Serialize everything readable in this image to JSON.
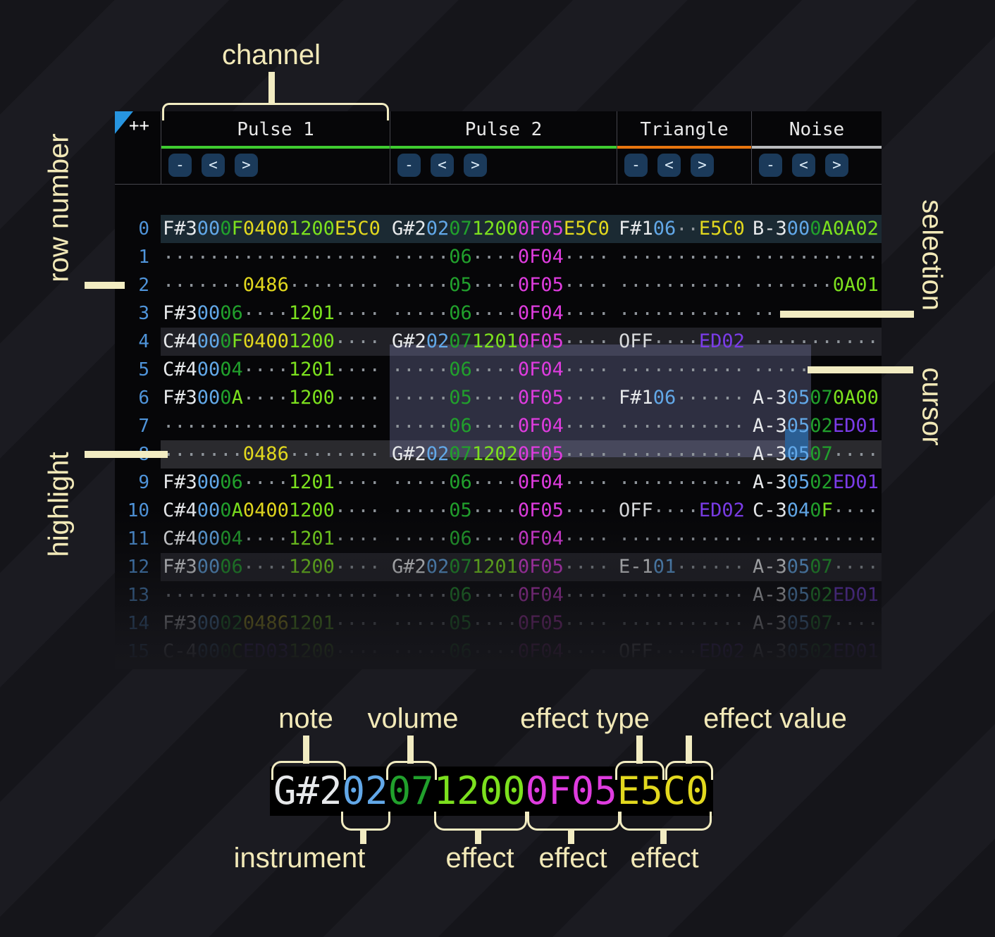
{
  "colors": {
    "note": "#e7e9eb",
    "inst": "#62a8e8",
    "vol": "#21a02c",
    "volh": "#7ce01e",
    "effG": "#7ce01e",
    "effY": "#e2d81e",
    "effM": "#df3cdf",
    "effP": "#7b3ce8",
    "off": "#d8dadc",
    "dot": "#8f959b",
    "rownum": "#4f94da",
    "annot": "#f2e9b8",
    "bracket": "#f2ecc2",
    "cursor": "#2b5f94",
    "selection": "rgba(138,144,200,0.30)",
    "btnbg": "#1b3a5a",
    "btnfg": "#dcecf8",
    "divider": "#45454c",
    "tablebg": "#060608",
    "hl0": "#1b2a33",
    "hl4": "#212127",
    "hl8": "#2a2a2e",
    "headtext": "#e8e8e8"
  },
  "corner": {
    "label": "++"
  },
  "header": {
    "channels": [
      {
        "key": "p1",
        "label": "Pulse 1",
        "underline": "#3fcb30",
        "buttons": [
          "-",
          "<",
          ">"
        ]
      },
      {
        "key": "p2",
        "label": "Pulse 2",
        "underline": "#3fcb30",
        "buttons": [
          "-",
          "<",
          ">"
        ]
      },
      {
        "key": "tri",
        "label": "Triangle",
        "underline": "#e8750f",
        "buttons": [
          "-",
          "<",
          ">"
        ]
      },
      {
        "key": "noi",
        "label": "Noise",
        "underline": "#b8babc",
        "buttons": [
          "-",
          "<",
          ">"
        ]
      }
    ]
  },
  "annotations": {
    "channel": "channel",
    "row_number": "row number",
    "selection": "selection",
    "cursor": "cursor",
    "highlight": "highlight"
  },
  "example": {
    "segments": [
      [
        "note",
        "G#2"
      ],
      [
        "inst",
        "02"
      ],
      [
        "vol",
        "07"
      ],
      [
        "effG",
        "1200"
      ],
      [
        "effM",
        "0F05"
      ],
      [
        "effY",
        "E5C0"
      ]
    ],
    "top_labels": [
      "note",
      "volume",
      "effect type",
      "effect value"
    ],
    "bottom_labels": [
      "instrument",
      "effect",
      "effect",
      "effect"
    ]
  },
  "pattern": {
    "rows": [
      {
        "n": "0",
        "hl": "first",
        "p1": [
          [
            "note",
            "F#3"
          ],
          [
            "inst",
            "00"
          ],
          [
            "vol",
            "0"
          ],
          [
            "volh",
            "F"
          ],
          [
            "effY",
            "0400"
          ],
          [
            "effG",
            "1200"
          ],
          [
            "effY",
            "E5C0"
          ]
        ],
        "p2": [
          [
            "note",
            "G#2"
          ],
          [
            "inst",
            "02"
          ],
          [
            "vol",
            "07"
          ],
          [
            "effG",
            "1200"
          ],
          [
            "effM",
            "0F05"
          ],
          [
            "effY",
            "E5C0"
          ]
        ],
        "tri": [
          [
            "note",
            "F#1"
          ],
          [
            "inst",
            "06"
          ],
          [
            "dot",
            ".."
          ],
          [
            "effY",
            "E5C0"
          ]
        ],
        "noi": [
          [
            "note",
            "B-3"
          ],
          [
            "inst",
            "00"
          ],
          [
            "vol",
            "0"
          ],
          [
            "volh",
            "A"
          ],
          [
            "effG",
            "0A02"
          ]
        ]
      },
      {
        "n": "1",
        "p1": [
          [
            "dot",
            "..................."
          ]
        ],
        "p2": [
          [
            "dot",
            "....."
          ],
          [
            "vol",
            "06"
          ],
          [
            "dot",
            "...."
          ],
          [
            "effM",
            "0F04"
          ],
          [
            "dot",
            "...."
          ]
        ],
        "tri": [
          [
            "dot",
            "..........."
          ]
        ],
        "noi": [
          [
            "dot",
            "..........."
          ]
        ]
      },
      {
        "n": "2",
        "p1": [
          [
            "dot",
            "......."
          ],
          [
            "effY",
            "0486"
          ],
          [
            "dot",
            "........"
          ]
        ],
        "p2": [
          [
            "dot",
            "....."
          ],
          [
            "vol",
            "05"
          ],
          [
            "dot",
            "...."
          ],
          [
            "effM",
            "0F05"
          ],
          [
            "dot",
            "...."
          ]
        ],
        "tri": [
          [
            "dot",
            "..........."
          ]
        ],
        "noi": [
          [
            "dot",
            "......."
          ],
          [
            "effG",
            "0A01"
          ]
        ]
      },
      {
        "n": "3",
        "p1": [
          [
            "note",
            "F#3"
          ],
          [
            "inst",
            "00"
          ],
          [
            "vol",
            "06"
          ],
          [
            "dot",
            "...."
          ],
          [
            "effG",
            "1201"
          ],
          [
            "dot",
            "...."
          ]
        ],
        "p2": [
          [
            "dot",
            "....."
          ],
          [
            "vol",
            "06"
          ],
          [
            "dot",
            "...."
          ],
          [
            "effM",
            "0F04"
          ],
          [
            "dot",
            "...."
          ]
        ],
        "tri": [
          [
            "dot",
            "..........."
          ]
        ],
        "noi": [
          [
            "dot",
            "..........."
          ]
        ]
      },
      {
        "n": "4",
        "hl": "beat",
        "p1": [
          [
            "note",
            "C#4"
          ],
          [
            "inst",
            "00"
          ],
          [
            "vol",
            "0"
          ],
          [
            "volh",
            "F"
          ],
          [
            "effY",
            "0400"
          ],
          [
            "effG",
            "1200"
          ],
          [
            "dot",
            "...."
          ]
        ],
        "p2": [
          [
            "note",
            "G#2"
          ],
          [
            "inst",
            "02"
          ],
          [
            "vol",
            "07"
          ],
          [
            "effG",
            "1201"
          ],
          [
            "effM",
            "0F05"
          ],
          [
            "dot",
            "...."
          ]
        ],
        "tri": [
          [
            "off",
            "OFF"
          ],
          [
            "dot",
            "...."
          ],
          [
            "effP",
            "ED02"
          ]
        ],
        "noi": [
          [
            "dot",
            "..........."
          ]
        ]
      },
      {
        "n": "5",
        "p1": [
          [
            "note",
            "C#4"
          ],
          [
            "inst",
            "00"
          ],
          [
            "vol",
            "04"
          ],
          [
            "dot",
            "...."
          ],
          [
            "effG",
            "1201"
          ],
          [
            "dot",
            "...."
          ]
        ],
        "p2": [
          [
            "dot",
            "....."
          ],
          [
            "vol",
            "06"
          ],
          [
            "dot",
            "...."
          ],
          [
            "effM",
            "0F04"
          ],
          [
            "dot",
            "...."
          ]
        ],
        "tri": [
          [
            "dot",
            "..........."
          ]
        ],
        "noi": [
          [
            "dot",
            "..........."
          ]
        ]
      },
      {
        "n": "6",
        "p1": [
          [
            "note",
            "F#3"
          ],
          [
            "inst",
            "00"
          ],
          [
            "vol",
            "0"
          ],
          [
            "volh",
            "A"
          ],
          [
            "dot",
            "...."
          ],
          [
            "effG",
            "1200"
          ],
          [
            "dot",
            "...."
          ]
        ],
        "p2": [
          [
            "dot",
            "....."
          ],
          [
            "vol",
            "05"
          ],
          [
            "dot",
            "...."
          ],
          [
            "effM",
            "0F05"
          ],
          [
            "dot",
            "...."
          ]
        ],
        "tri": [
          [
            "note",
            "F#1"
          ],
          [
            "inst",
            "06"
          ],
          [
            "dot",
            "......"
          ]
        ],
        "noi": [
          [
            "note",
            "A-3"
          ],
          [
            "inst",
            "05"
          ],
          [
            "vol",
            "07"
          ],
          [
            "effG",
            "0A00"
          ]
        ]
      },
      {
        "n": "7",
        "p1": [
          [
            "dot",
            "..................."
          ]
        ],
        "p2": [
          [
            "dot",
            "....."
          ],
          [
            "vol",
            "06"
          ],
          [
            "dot",
            "...."
          ],
          [
            "effM",
            "0F04"
          ],
          [
            "dot",
            "...."
          ]
        ],
        "tri": [
          [
            "dot",
            "..........."
          ]
        ],
        "noi": [
          [
            "note",
            "A-3"
          ],
          [
            "inst",
            "05"
          ],
          [
            "vol",
            "02"
          ],
          [
            "effP",
            "ED01"
          ]
        ]
      },
      {
        "n": "8",
        "hl": "bar",
        "p1": [
          [
            "dot",
            "......."
          ],
          [
            "effY",
            "0486"
          ],
          [
            "dot",
            "........"
          ]
        ],
        "p2": [
          [
            "note",
            "G#2"
          ],
          [
            "inst",
            "02"
          ],
          [
            "vol",
            "07"
          ],
          [
            "effG",
            "1202"
          ],
          [
            "effM",
            "0F05"
          ],
          [
            "dot",
            "...."
          ]
        ],
        "tri": [
          [
            "dot",
            "..........."
          ]
        ],
        "noi": [
          [
            "note",
            "A-3"
          ],
          [
            "inst",
            "05"
          ],
          [
            "vol",
            "07"
          ],
          [
            "dot",
            "...."
          ]
        ]
      },
      {
        "n": "9",
        "p1": [
          [
            "note",
            "F#3"
          ],
          [
            "inst",
            "00"
          ],
          [
            "vol",
            "06"
          ],
          [
            "dot",
            "...."
          ],
          [
            "effG",
            "1201"
          ],
          [
            "dot",
            "...."
          ]
        ],
        "p2": [
          [
            "dot",
            "....."
          ],
          [
            "vol",
            "06"
          ],
          [
            "dot",
            "...."
          ],
          [
            "effM",
            "0F04"
          ],
          [
            "dot",
            "...."
          ]
        ],
        "tri": [
          [
            "dot",
            "..........."
          ]
        ],
        "noi": [
          [
            "note",
            "A-3"
          ],
          [
            "inst",
            "05"
          ],
          [
            "vol",
            "02"
          ],
          [
            "effP",
            "ED01"
          ]
        ]
      },
      {
        "n": "10",
        "p1": [
          [
            "note",
            "C#4"
          ],
          [
            "inst",
            "00"
          ],
          [
            "vol",
            "0"
          ],
          [
            "volh",
            "A"
          ],
          [
            "effY",
            "0400"
          ],
          [
            "effG",
            "1200"
          ],
          [
            "dot",
            "...."
          ]
        ],
        "p2": [
          [
            "dot",
            "....."
          ],
          [
            "vol",
            "05"
          ],
          [
            "dot",
            "...."
          ],
          [
            "effM",
            "0F05"
          ],
          [
            "dot",
            "...."
          ]
        ],
        "tri": [
          [
            "off",
            "OFF"
          ],
          [
            "dot",
            "...."
          ],
          [
            "effP",
            "ED02"
          ]
        ],
        "noi": [
          [
            "note",
            "C-3"
          ],
          [
            "inst",
            "04"
          ],
          [
            "vol",
            "0"
          ],
          [
            "volh",
            "F"
          ],
          [
            "dot",
            "...."
          ]
        ]
      },
      {
        "n": "11",
        "p1": [
          [
            "note",
            "C#4"
          ],
          [
            "inst",
            "00"
          ],
          [
            "vol",
            "04"
          ],
          [
            "dot",
            "...."
          ],
          [
            "effG",
            "1201"
          ],
          [
            "dot",
            "...."
          ]
        ],
        "p2": [
          [
            "dot",
            "....."
          ],
          [
            "vol",
            "06"
          ],
          [
            "dot",
            "...."
          ],
          [
            "effM",
            "0F04"
          ],
          [
            "dot",
            "...."
          ]
        ],
        "tri": [
          [
            "dot",
            "..........."
          ]
        ],
        "noi": [
          [
            "dot",
            "..........."
          ]
        ]
      },
      {
        "n": "12",
        "hl": "beat",
        "p1": [
          [
            "note",
            "F#3"
          ],
          [
            "inst",
            "00"
          ],
          [
            "vol",
            "06"
          ],
          [
            "dot",
            "...."
          ],
          [
            "effG",
            "1200"
          ],
          [
            "dot",
            "...."
          ]
        ],
        "p2": [
          [
            "note",
            "G#2"
          ],
          [
            "inst",
            "02"
          ],
          [
            "vol",
            "07"
          ],
          [
            "effG",
            "1201"
          ],
          [
            "effM",
            "0F05"
          ],
          [
            "dot",
            "...."
          ]
        ],
        "tri": [
          [
            "note",
            "E-1"
          ],
          [
            "inst",
            "01"
          ],
          [
            "dot",
            "......"
          ]
        ],
        "noi": [
          [
            "note",
            "A-3"
          ],
          [
            "inst",
            "05"
          ],
          [
            "vol",
            "07"
          ],
          [
            "dot",
            "...."
          ]
        ]
      },
      {
        "n": "13",
        "p1": [
          [
            "dot",
            "..................."
          ]
        ],
        "p2": [
          [
            "dot",
            "....."
          ],
          [
            "vol",
            "06"
          ],
          [
            "dot",
            "...."
          ],
          [
            "effM",
            "0F04"
          ],
          [
            "dot",
            "...."
          ]
        ],
        "tri": [
          [
            "dot",
            "..........."
          ]
        ],
        "noi": [
          [
            "note",
            "A-3"
          ],
          [
            "inst",
            "05"
          ],
          [
            "vol",
            "02"
          ],
          [
            "effP",
            "ED01"
          ]
        ]
      },
      {
        "n": "14",
        "p1": [
          [
            "note",
            "F#3"
          ],
          [
            "inst",
            "00"
          ],
          [
            "vol",
            "02"
          ],
          [
            "effY",
            "0486"
          ],
          [
            "effG",
            "1201"
          ],
          [
            "dot",
            "...."
          ]
        ],
        "p2": [
          [
            "dot",
            "....."
          ],
          [
            "vol",
            "05"
          ],
          [
            "dot",
            "...."
          ],
          [
            "effM",
            "0F05"
          ],
          [
            "dot",
            "...."
          ]
        ],
        "tri": [
          [
            "dot",
            "..........."
          ]
        ],
        "noi": [
          [
            "note",
            "A-3"
          ],
          [
            "inst",
            "05"
          ],
          [
            "vol",
            "07"
          ],
          [
            "dot",
            "...."
          ]
        ]
      },
      {
        "n": "15",
        "p1": [
          [
            "note",
            "C-4"
          ],
          [
            "inst",
            "00"
          ],
          [
            "vol",
            "0"
          ],
          [
            "volh",
            "C"
          ],
          [
            "effP",
            "ED03"
          ],
          [
            "effG",
            "1200"
          ],
          [
            "dot",
            "...."
          ]
        ],
        "p2": [
          [
            "dot",
            "....."
          ],
          [
            "vol",
            "06"
          ],
          [
            "dot",
            "...."
          ],
          [
            "effM",
            "0F04"
          ],
          [
            "dot",
            "...."
          ]
        ],
        "tri": [
          [
            "off",
            "OFF"
          ],
          [
            "dot",
            "...."
          ],
          [
            "effP",
            "ED02"
          ]
        ],
        "noi": [
          [
            "note",
            "A-3"
          ],
          [
            "inst",
            "05"
          ],
          [
            "vol",
            "02"
          ],
          [
            "effP",
            "ED01"
          ]
        ]
      }
    ]
  }
}
